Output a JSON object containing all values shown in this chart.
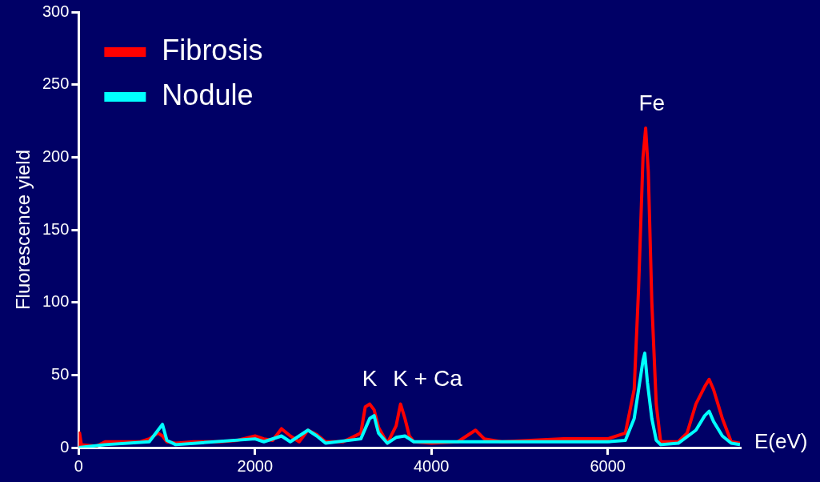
{
  "chart_data": {
    "type": "line",
    "xlabel": "E(eV)",
    "ylabel": "Fluorescence yield",
    "xlim": [
      0,
      7500
    ],
    "xticks": [
      0,
      2000,
      4000,
      6000
    ],
    "ylim": [
      0,
      300
    ],
    "yticks": [
      0,
      50,
      100,
      150,
      200,
      250,
      300
    ],
    "grid": false,
    "legend": "top left",
    "marker": "none",
    "line_style": "solid",
    "annotations": [
      {
        "text": "K",
        "x": 3300,
        "y": 30
      },
      {
        "text": "K + Ca",
        "x": 3650,
        "y": 30
      },
      {
        "text": "Fe",
        "x": 6430,
        "y": 220
      }
    ],
    "series": [
      {
        "name": "Fibrosis",
        "color": "#ff0000",
        "x": [
          0,
          10,
          30,
          200,
          300,
          500,
          700,
          800,
          900,
          950,
          1000,
          1100,
          1300,
          1600,
          1800,
          2000,
          2100,
          2200,
          2300,
          2400,
          2500,
          2600,
          2700,
          2800,
          3000,
          3200,
          3250,
          3300,
          3350,
          3400,
          3500,
          3600,
          3650,
          3700,
          3750,
          3800,
          4000,
          4300,
          4500,
          4600,
          4800,
          5500,
          6000,
          6200,
          6300,
          6350,
          6400,
          6430,
          6460,
          6500,
          6550,
          6600,
          6800,
          6900,
          7000,
          7100,
          7150,
          7200,
          7300,
          7400,
          7500
        ],
        "values": [
          0,
          10,
          2,
          1,
          4,
          4,
          4,
          6,
          10,
          8,
          4,
          3,
          4,
          4,
          5,
          8,
          6,
          5,
          13,
          8,
          4,
          12,
          9,
          4,
          4,
          10,
          28,
          30,
          26,
          14,
          3,
          15,
          30,
          20,
          8,
          4,
          3,
          4,
          12,
          6,
          4,
          6,
          6,
          10,
          40,
          110,
          200,
          220,
          190,
          100,
          30,
          4,
          4,
          10,
          30,
          42,
          47,
          40,
          20,
          4,
          3
        ]
      },
      {
        "name": "Nodule",
        "color": "#00ffff",
        "x": [
          0,
          300,
          800,
          900,
          950,
          1000,
          1100,
          2000,
          2100,
          2300,
          2400,
          2600,
          2700,
          2800,
          3200,
          3300,
          3350,
          3400,
          3500,
          3600,
          3700,
          3800,
          4500,
          5500,
          6000,
          6200,
          6300,
          6400,
          6420,
          6450,
          6500,
          6550,
          6600,
          6800,
          7000,
          7100,
          7150,
          7200,
          7300,
          7400,
          7500
        ],
        "values": [
          0,
          2,
          4,
          12,
          16,
          5,
          2,
          6,
          4,
          8,
          4,
          12,
          8,
          3,
          6,
          20,
          22,
          10,
          3,
          7,
          8,
          4,
          4,
          4,
          4,
          5,
          20,
          60,
          65,
          45,
          20,
          5,
          2,
          3,
          12,
          22,
          25,
          18,
          8,
          3,
          2
        ]
      }
    ]
  }
}
